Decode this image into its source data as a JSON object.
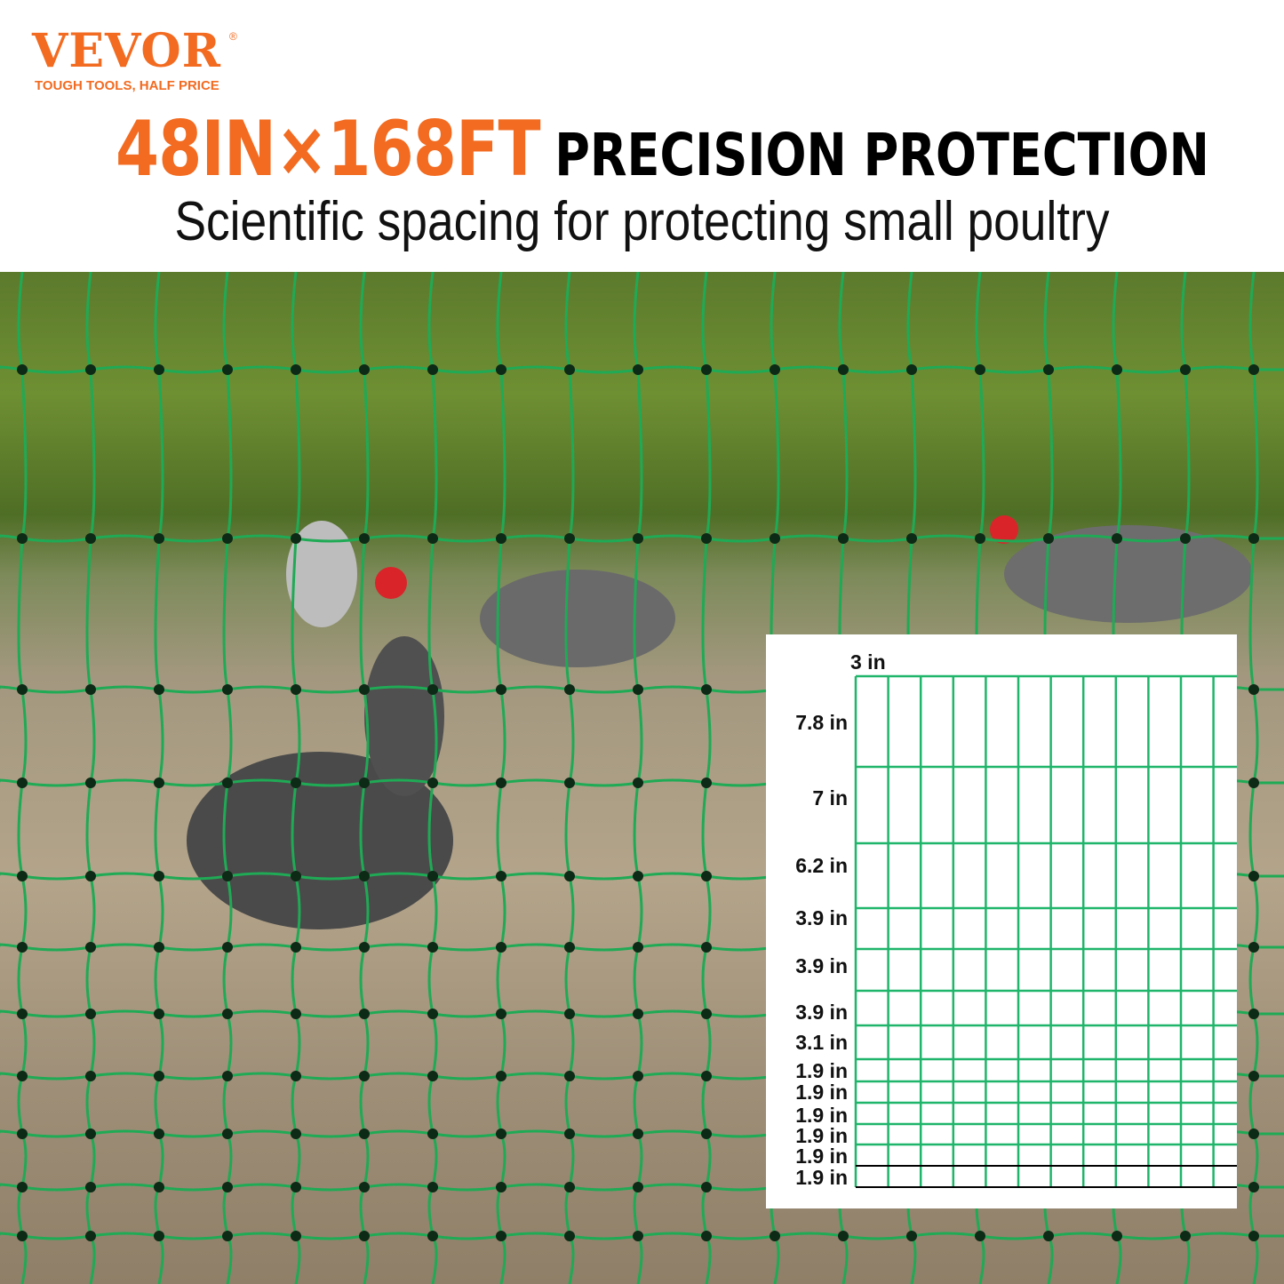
{
  "brand": {
    "name": "VEVOR",
    "registered": "®",
    "tagline": "TOUGH TOOLS, HALF PRICE",
    "color": "#f26b21"
  },
  "headline": {
    "size": "48IN×168FT",
    "text": "PRECISION PROTECTION"
  },
  "subtitle": "Scientific spacing for protecting small poultry",
  "diagram": {
    "mesh_color": "#1fb56a",
    "column_width_label": "3 in",
    "row_spacing_labels": [
      "7.8 in",
      "7 in",
      "6.2 in",
      "3.9 in",
      "3.9 in",
      "3.9 in",
      "3.1 in",
      "1.9 in",
      "1.9 in",
      "1.9 in",
      "1.9 in",
      "1.9 in",
      "1.9 in"
    ]
  }
}
